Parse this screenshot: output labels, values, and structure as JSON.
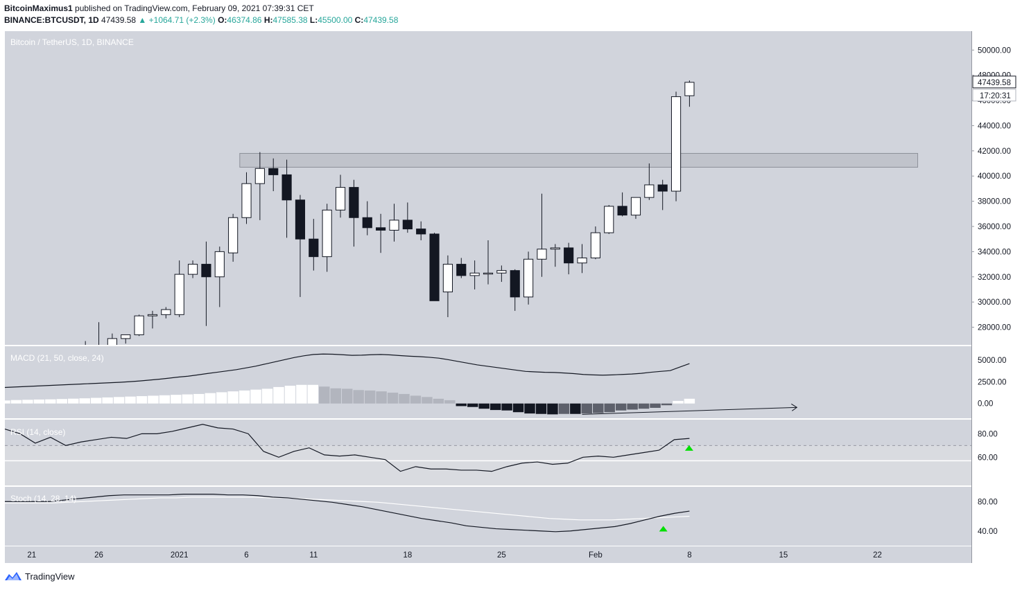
{
  "header": {
    "author": "BitcoinMaximus1",
    "published_text": "published on TradingView.com, February 09, 2021 07:39:31 CET",
    "symbol": "BINANCE:BTCUSDT, 1D",
    "last": "47439.58",
    "change": "+1064.71 (+2.3%)",
    "open_label": "O:",
    "open": "46374.86",
    "high_label": "H:",
    "high": "47585.38",
    "low_label": "L:",
    "low": "45500.00",
    "close_label": "C:",
    "close": "47439.58"
  },
  "footer": {
    "brand": "TradingView"
  },
  "colors": {
    "background": "#d1d4dc",
    "candle_up": "#ffffff",
    "candle_down": "#131722",
    "marker": "#00e000",
    "zone": "#b2b5be"
  },
  "chart_data": {
    "type": "candlestick",
    "title": "Bitcoin / TetherUS, 1D, BINANCE",
    "currency": "USDT",
    "price_ticks": [
      28000,
      30000,
      32000,
      34000,
      36000,
      38000,
      40000,
      42000,
      44000,
      46000,
      48000,
      50000
    ],
    "price_tick_labels": [
      "28000.00",
      "30000.00",
      "32000.00",
      "34000.00",
      "36000.00",
      "38000.00",
      "40000.00",
      "42000.00",
      "44000.00",
      "46000.00",
      "48000.00",
      "50000.00"
    ],
    "price_range": [
      26600,
      51500
    ],
    "last_price_label": "47439.58",
    "countdown": "17:20:31",
    "resistance_zone": {
      "from": 40700,
      "to": 41800,
      "x_start": "2021-01-06",
      "x_end": "2021-02-25"
    },
    "x_tick_labels": [
      "21",
      "26",
      "2021",
      "6",
      "11",
      "18",
      "25",
      "Feb",
      "8",
      "15",
      "22"
    ],
    "x_tick_dates": [
      "2020-12-21",
      "2020-12-26",
      "2021-01-01",
      "2021-01-06",
      "2021-01-11",
      "2021-01-18",
      "2021-01-25",
      "2021-02-01",
      "2021-02-08",
      "2021-02-15",
      "2021-02-22"
    ],
    "x_range": [
      "2020-12-19",
      "2021-03-01"
    ],
    "candles": [
      {
        "date": "2020-12-25",
        "o": 24700,
        "h": 26900,
        "l": 24500,
        "c": 26500
      },
      {
        "date": "2020-12-26",
        "o": 26500,
        "h": 28400,
        "l": 26200,
        "c": 26300
      },
      {
        "date": "2020-12-27",
        "o": 26300,
        "h": 27500,
        "l": 26200,
        "c": 27100
      },
      {
        "date": "2020-12-28",
        "o": 27100,
        "h": 27400,
        "l": 26700,
        "c": 27400
      },
      {
        "date": "2020-12-29",
        "o": 27400,
        "h": 29000,
        "l": 27300,
        "c": 28900
      },
      {
        "date": "2020-12-30",
        "o": 28900,
        "h": 29300,
        "l": 27900,
        "c": 29000
      },
      {
        "date": "2020-12-31",
        "o": 29000,
        "h": 29600,
        "l": 28700,
        "c": 29400
      },
      {
        "date": "2021-01-01",
        "o": 29000,
        "h": 33300,
        "l": 28800,
        "c": 32200
      },
      {
        "date": "2021-01-02",
        "o": 32200,
        "h": 33300,
        "l": 31900,
        "c": 33000
      },
      {
        "date": "2021-01-03",
        "o": 33000,
        "h": 34800,
        "l": 28100,
        "c": 32000
      },
      {
        "date": "2021-01-04",
        "o": 32000,
        "h": 34400,
        "l": 29600,
        "c": 34000
      },
      {
        "date": "2021-01-05",
        "o": 33900,
        "h": 37000,
        "l": 33200,
        "c": 36700
      },
      {
        "date": "2021-01-06",
        "o": 36700,
        "h": 40300,
        "l": 36200,
        "c": 39400
      },
      {
        "date": "2021-01-07",
        "o": 39400,
        "h": 41900,
        "l": 36500,
        "c": 40600
      },
      {
        "date": "2021-01-08",
        "o": 40600,
        "h": 41400,
        "l": 38800,
        "c": 40100
      },
      {
        "date": "2021-01-09",
        "o": 40100,
        "h": 41300,
        "l": 35100,
        "c": 38100
      },
      {
        "date": "2021-01-10",
        "o": 38100,
        "h": 38500,
        "l": 30400,
        "c": 35000
      },
      {
        "date": "2021-01-11",
        "o": 35000,
        "h": 36600,
        "l": 32500,
        "c": 33600
      },
      {
        "date": "2021-01-12",
        "o": 33600,
        "h": 37800,
        "l": 32400,
        "c": 37300
      },
      {
        "date": "2021-01-13",
        "o": 37300,
        "h": 40100,
        "l": 36700,
        "c": 39100
      },
      {
        "date": "2021-01-14",
        "o": 39100,
        "h": 39700,
        "l": 34400,
        "c": 36700
      },
      {
        "date": "2021-01-15",
        "o": 36700,
        "h": 38000,
        "l": 35300,
        "c": 35900
      },
      {
        "date": "2021-01-16",
        "o": 35900,
        "h": 37000,
        "l": 33900,
        "c": 35700
      },
      {
        "date": "2021-01-17",
        "o": 35700,
        "h": 37800,
        "l": 34800,
        "c": 36500
      },
      {
        "date": "2021-01-18",
        "o": 36500,
        "h": 37900,
        "l": 35500,
        "c": 35800
      },
      {
        "date": "2021-01-19",
        "o": 35800,
        "h": 36400,
        "l": 34900,
        "c": 35400
      },
      {
        "date": "2021-01-20",
        "o": 35400,
        "h": 35500,
        "l": 30100,
        "c": 30100
      },
      {
        "date": "2021-01-21",
        "o": 30800,
        "h": 33700,
        "l": 28800,
        "c": 33000
      },
      {
        "date": "2021-01-22",
        "o": 33000,
        "h": 33500,
        "l": 31900,
        "c": 32100
      },
      {
        "date": "2021-01-23",
        "o": 32100,
        "h": 33300,
        "l": 31000,
        "c": 32300
      },
      {
        "date": "2021-01-24",
        "o": 32300,
        "h": 34900,
        "l": 31400,
        "c": 32300
      },
      {
        "date": "2021-01-25",
        "o": 32300,
        "h": 32900,
        "l": 31600,
        "c": 32500
      },
      {
        "date": "2021-01-26",
        "o": 32500,
        "h": 32600,
        "l": 29300,
        "c": 30400
      },
      {
        "date": "2021-01-27",
        "o": 30400,
        "h": 34000,
        "l": 29800,
        "c": 33400
      },
      {
        "date": "2021-01-28",
        "o": 33400,
        "h": 38600,
        "l": 32000,
        "c": 34200
      },
      {
        "date": "2021-01-29",
        "o": 34200,
        "h": 34600,
        "l": 32800,
        "c": 34300
      },
      {
        "date": "2021-01-30",
        "o": 34300,
        "h": 34700,
        "l": 32200,
        "c": 33100
      },
      {
        "date": "2021-01-31",
        "o": 33100,
        "h": 34600,
        "l": 32300,
        "c": 33500
      },
      {
        "date": "2021-02-01",
        "o": 33500,
        "h": 36000,
        "l": 33400,
        "c": 35500
      },
      {
        "date": "2021-02-02",
        "o": 35500,
        "h": 37700,
        "l": 35400,
        "c": 37600
      },
      {
        "date": "2021-02-03",
        "o": 37600,
        "h": 38700,
        "l": 36800,
        "c": 36900
      },
      {
        "date": "2021-02-04",
        "o": 36900,
        "h": 38300,
        "l": 36600,
        "c": 38300
      },
      {
        "date": "2021-02-05",
        "o": 38300,
        "h": 41000,
        "l": 38100,
        "c": 39300
      },
      {
        "date": "2021-02-06",
        "o": 39300,
        "h": 39700,
        "l": 37300,
        "c": 38800
      },
      {
        "date": "2021-02-07",
        "o": 38800,
        "h": 46700,
        "l": 38000,
        "c": 46300
      },
      {
        "date": "2021-02-08",
        "o": 46374.86,
        "h": 47585.38,
        "l": 45500,
        "c": 47439.58
      }
    ],
    "macd": {
      "title": "MACD (21, 50, close, 24)",
      "ticks": [
        0,
        2500,
        5000
      ],
      "tick_labels": [
        "0.00",
        "2500.00",
        "5000.00"
      ],
      "range": [
        -1700,
        6600
      ],
      "line": [
        1850,
        1900,
        1950,
        2000,
        2050,
        2100,
        2150,
        2200,
        2250,
        2300,
        2350,
        2400,
        2450,
        2520,
        2600,
        2700,
        2800,
        2920,
        3050,
        3150,
        3300,
        3460,
        3600,
        3750,
        3900,
        4100,
        4300,
        4550,
        4800,
        5050,
        5300,
        5500,
        5650,
        5700,
        5680,
        5620,
        5550,
        5570,
        5620,
        5650,
        5600,
        5520,
        5450,
        5400,
        5330,
        5230,
        5050,
        4850,
        4650,
        4450,
        4300,
        4150,
        4000,
        3850,
        3700,
        3650,
        3600,
        3580,
        3520,
        3450,
        3350,
        3300,
        3270,
        3300,
        3350,
        3400,
        3480,
        3600,
        3700,
        3790,
        4200,
        4600
      ],
      "histogram": [
        350,
        400,
        430,
        460,
        480,
        520,
        560,
        600,
        650,
        700,
        750,
        800,
        850,
        900,
        950,
        1000,
        1050,
        1100,
        1200,
        1300,
        1400,
        1500,
        1600,
        1700,
        1900,
        2050,
        2150,
        2150,
        1950,
        1750,
        1700,
        1550,
        1500,
        1400,
        1250,
        1100,
        900,
        750,
        550,
        380,
        -300,
        -400,
        -600,
        -750,
        -800,
        -1000,
        -1150,
        -1200,
        -1250,
        -1200,
        -1200,
        -1150,
        -1100,
        -1000,
        -800,
        -700,
        -600,
        -500,
        -200,
        300,
        550
      ],
      "divergence_line": [
        {
          "date": "2021-01-31",
          "value": -1250
        },
        {
          "date": "2021-02-16",
          "value": -450
        }
      ]
    },
    "rsi": {
      "title": "RSI (14, close)",
      "ticks": [
        60,
        80
      ],
      "tick_labels": [
        "60.00",
        "80.00"
      ],
      "range": [
        36,
        92
      ],
      "line": [
        84,
        80,
        72,
        77,
        70,
        73,
        75,
        77,
        76,
        80,
        80,
        82,
        85,
        88,
        85,
        84,
        80,
        65,
        60,
        65,
        68,
        62,
        61,
        62,
        60,
        58,
        48,
        52,
        50,
        50,
        49,
        49,
        48,
        52,
        55,
        56,
        54,
        55,
        60,
        61,
        60,
        62,
        64,
        66,
        75,
        76
      ]
    },
    "stoch": {
      "title": "Stoch (14, 28, 14)",
      "ticks": [
        40,
        80
      ],
      "tick_labels": [
        "40.00",
        "80.00"
      ],
      "range": [
        20,
        100
      ],
      "k": [
        80,
        80,
        80,
        80,
        82,
        84,
        86,
        88,
        89,
        89,
        89,
        89,
        90,
        90,
        90,
        89,
        89,
        88,
        86,
        85,
        83,
        81,
        79,
        76,
        73,
        69,
        65,
        61,
        57,
        54,
        51,
        47,
        45,
        43,
        42,
        41,
        40,
        39,
        40,
        42,
        44,
        46,
        50,
        55,
        60,
        64,
        67
      ],
      "d": [
        78,
        78,
        78,
        78,
        79,
        80,
        81,
        82,
        83,
        84,
        85,
        85,
        86,
        86,
        86,
        86,
        86,
        85,
        85,
        84,
        83,
        82,
        81,
        80,
        79,
        77,
        75,
        73,
        71,
        69,
        67,
        65,
        63,
        61,
        59,
        57,
        56,
        55,
        55,
        55,
        56,
        57,
        58,
        59,
        60
      ]
    }
  }
}
